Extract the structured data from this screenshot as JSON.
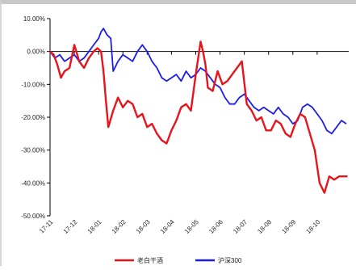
{
  "chart_data": {
    "type": "line",
    "title": "",
    "xlabel": "",
    "ylabel": "",
    "ylim": [
      -50,
      10
    ],
    "yticks": [
      10,
      0,
      -10,
      -20,
      -30,
      -40,
      -50
    ],
    "ytick_labels": [
      "10.00%",
      "0.00%",
      "-10.00%",
      "-20.00%",
      "-30.00%",
      "-40.00%",
      "-50.00%"
    ],
    "xticks": [
      "17-11",
      "17-12",
      "18-01",
      "18-02",
      "18-03",
      "18-04",
      "18-05",
      "18-06",
      "18-07",
      "18-08",
      "18-09",
      "18-10"
    ],
    "xtick_positions": [
      0,
      1,
      2,
      3,
      4,
      5,
      6,
      7,
      8,
      9,
      10,
      11
    ],
    "x_range": [
      0,
      12.3
    ],
    "grid": false,
    "legend_position": "bottom",
    "series": [
      {
        "name": "老白干酒",
        "color": "#e8141b",
        "x": [
          0,
          0.15,
          0.3,
          0.45,
          0.6,
          0.8,
          1.0,
          1.2,
          1.4,
          1.6,
          1.8,
          1.95,
          2.1,
          2.2,
          2.3,
          2.4,
          2.6,
          2.8,
          3.0,
          3.2,
          3.4,
          3.6,
          3.8,
          4.0,
          4.2,
          4.4,
          4.6,
          4.8,
          5.0,
          5.2,
          5.4,
          5.6,
          5.8,
          6.0,
          6.1,
          6.2,
          6.3,
          6.4,
          6.5,
          6.7,
          6.9,
          7.1,
          7.3,
          7.5,
          7.7,
          7.9,
          8.1,
          8.3,
          8.5,
          8.7,
          8.9,
          9.1,
          9.3,
          9.5,
          9.7,
          9.9,
          10.1,
          10.3,
          10.5,
          10.7,
          10.9,
          11.1,
          11.3,
          11.5,
          11.7,
          11.9,
          12.1,
          12.25
        ],
        "values": [
          0,
          -1,
          -4,
          -8,
          -6,
          -5,
          2,
          -3,
          -5,
          -2,
          0,
          1,
          0,
          -6,
          -15,
          -23,
          -18,
          -14,
          -17,
          -15,
          -16,
          -20,
          -19,
          -23,
          -22,
          -25,
          -27,
          -28,
          -24,
          -21,
          -17,
          -16,
          -18,
          -7,
          -2,
          3,
          0,
          -4,
          -11,
          -12,
          -6,
          -10,
          -9,
          -7,
          -5,
          -3,
          -16,
          -18,
          -21,
          -20,
          -24,
          -24,
          -21,
          -22,
          -25,
          -26,
          -22,
          -19,
          -20,
          -25,
          -30,
          -40,
          -43,
          -38,
          -39,
          -38,
          -38,
          -38
        ]
      },
      {
        "name": "沪深300",
        "color": "#1c1cf0",
        "x": [
          0,
          0.2,
          0.4,
          0.6,
          0.8,
          1.0,
          1.2,
          1.4,
          1.6,
          1.8,
          2.0,
          2.1,
          2.2,
          2.35,
          2.5,
          2.6,
          2.8,
          3.0,
          3.2,
          3.4,
          3.6,
          3.8,
          4.0,
          4.2,
          4.4,
          4.6,
          4.8,
          5.0,
          5.2,
          5.4,
          5.6,
          5.8,
          6.0,
          6.2,
          6.4,
          6.6,
          6.8,
          7.0,
          7.2,
          7.4,
          7.6,
          7.8,
          8.0,
          8.2,
          8.4,
          8.6,
          8.8,
          9.0,
          9.2,
          9.4,
          9.6,
          9.8,
          10.0,
          10.2,
          10.4,
          10.6,
          10.8,
          11.0,
          11.2,
          11.4,
          11.6,
          11.8,
          12.0,
          12.2
        ],
        "values": [
          0,
          -2,
          -1,
          -3,
          -2,
          -1,
          -3,
          -2,
          0,
          2,
          4,
          6,
          7,
          5,
          4,
          -6,
          -3,
          -1,
          -2,
          -3,
          0,
          2,
          0,
          -3,
          -5,
          -8,
          -9,
          -8,
          -7,
          -9,
          -6,
          -8,
          -7,
          -5,
          -6,
          -8,
          -10,
          -11,
          -14,
          -16,
          -16,
          -14,
          -13,
          -15,
          -17,
          -18,
          -17,
          -18,
          -19,
          -17,
          -19,
          -20,
          -22,
          -21,
          -17,
          -16,
          -17,
          -19,
          -21,
          -24,
          -25,
          -23,
          -21,
          -22
        ]
      }
    ]
  },
  "legend": {
    "items": [
      "老白干酒",
      "沪深300"
    ]
  }
}
